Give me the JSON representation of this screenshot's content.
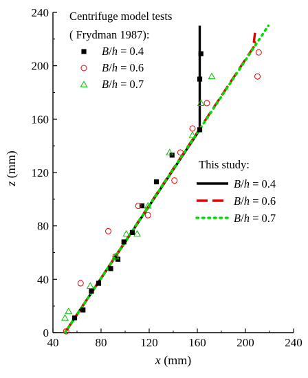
{
  "chart_data": {
    "type": "scatter",
    "xlabel_var": "x",
    "xlabel_unit": " (mm)",
    "ylabel_var": "z",
    "ylabel_unit": " (mm)",
    "xlim": [
      40,
      240
    ],
    "ylim": [
      0,
      240
    ],
    "xticks": [
      40,
      80,
      120,
      160,
      200,
      240
    ],
    "yticks": [
      0,
      40,
      80,
      120,
      160,
      200,
      240
    ],
    "legend_experiment": {
      "title_line1": "Centrifuge model tests",
      "title_line2": "( Frydman 1987):",
      "entries": [
        {
          "var": "B/h",
          "eq": " = 0.4"
        },
        {
          "var": "B/h",
          "eq": " = 0.6"
        },
        {
          "var": "B/h",
          "eq": " = 0.7"
        }
      ]
    },
    "legend_study": {
      "title": "This study:",
      "entries": [
        {
          "var": "B/h",
          "eq": " = 0.4"
        },
        {
          "var": "B/h",
          "eq": " = 0.6"
        },
        {
          "var": "B/h",
          "eq": " = 0.7"
        }
      ]
    },
    "scatter_series": [
      {
        "name": "B/h = 0.4 (centrifuge)",
        "marker": "filled-square",
        "color": "#000000",
        "points": [
          [
            58,
            11
          ],
          [
            65,
            17
          ],
          [
            72,
            31
          ],
          [
            78,
            37
          ],
          [
            88,
            48
          ],
          [
            94,
            55
          ],
          [
            99,
            68
          ],
          [
            106,
            75
          ],
          [
            114,
            95
          ],
          [
            126,
            113
          ],
          [
            139,
            133
          ],
          [
            162,
            152
          ],
          [
            162,
            190
          ],
          [
            163,
            209
          ]
        ]
      },
      {
        "name": "B/h = 0.6 (centrifuge)",
        "marker": "open-circle",
        "color": "#e60000",
        "points": [
          [
            51,
            1
          ],
          [
            63,
            37
          ],
          [
            86,
            76
          ],
          [
            92,
            57
          ],
          [
            111,
            95
          ],
          [
            119,
            88
          ],
          [
            141,
            114
          ],
          [
            146,
            135
          ],
          [
            156,
            153
          ],
          [
            168,
            172
          ],
          [
            210,
            192
          ],
          [
            211,
            210
          ]
        ]
      },
      {
        "name": "B/h = 0.7 (centrifuge)",
        "marker": "open-triangle",
        "color": "#00c000",
        "points": [
          [
            50,
            11
          ],
          [
            53,
            16
          ],
          [
            71,
            35
          ],
          [
            92,
            57
          ],
          [
            101,
            74
          ],
          [
            110,
            74
          ],
          [
            119,
            95
          ],
          [
            137,
            135
          ],
          [
            156,
            148
          ],
          [
            163,
            172
          ],
          [
            172,
            192
          ]
        ]
      }
    ],
    "line_series": [
      {
        "name": "B/h = 0.4 (this study)",
        "style": "solid",
        "color": "#000000",
        "points": [
          [
            50,
            0
          ],
          [
            162,
            152
          ],
          [
            162,
            230
          ]
        ]
      },
      {
        "name": "B/h = 0.6 (this study)",
        "style": "dash",
        "color": "#e60000",
        "points": [
          [
            50,
            0
          ],
          [
            209,
            217
          ],
          [
            207,
            218
          ],
          [
            208,
            225
          ]
        ]
      },
      {
        "name": "B/h = 0.7 (this study)",
        "style": "dot",
        "color": "#00dd00",
        "points": [
          [
            50,
            0
          ],
          [
            219,
            230
          ]
        ]
      }
    ]
  }
}
